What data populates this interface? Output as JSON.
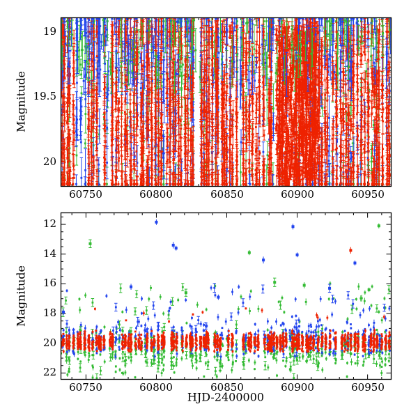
{
  "colors": {
    "red": "#ee2200",
    "green": "#33bb33",
    "blue": "#2244ee",
    "axis": "#000000",
    "background": "#ffffff"
  },
  "text": {
    "top_ylabel": "Magnitude",
    "bottom_ylabel": "Magnitude",
    "xlabel": "HJD-2400000",
    "xticks": [
      "60750",
      "60800",
      "60850",
      "60900",
      "60950"
    ],
    "top_yticks": [
      "19",
      "19.5",
      "20"
    ],
    "bottom_yticks": [
      "12",
      "14",
      "16",
      "18",
      "20",
      "22"
    ]
  },
  "chart_data": [
    {
      "type": "scatter",
      "panel": "top",
      "title": "",
      "xlabel": "",
      "ylabel": "Magnitude",
      "xlim": [
        60732,
        60967
      ],
      "ylim": [
        18.89,
        20.19
      ],
      "y_axis_inverted": true,
      "xticks": [
        60750,
        60800,
        60850,
        60900,
        60950
      ],
      "x_minor_step": 10,
      "yticks": [
        19,
        19.5,
        20
      ],
      "y_minor_step": 0.1,
      "grid": false,
      "legend": "none",
      "night_step": [
        1.2,
        3.2
      ],
      "night_skip_fraction": 0.08,
      "series": [
        {
          "name": "green-band",
          "color": "#33bb33",
          "mode": "band",
          "per_night": [
            2,
            7
          ],
          "mag_mean": 19.4,
          "mag_sigma": 0.6,
          "mag_clip": [
            18.92,
            20.17
          ],
          "err_mag": [
            0.03,
            0.2
          ]
        },
        {
          "name": "blue-band",
          "color": "#2244ee",
          "mode": "band",
          "per_night": [
            4,
            11
          ],
          "mag_mean": 19.45,
          "mag_sigma": 0.55,
          "mag_clip": [
            18.9,
            20.17
          ],
          "err_mag": [
            0.03,
            0.18
          ]
        },
        {
          "name": "red-band",
          "color": "#ee2200",
          "mode": "band",
          "per_night": [
            16,
            30
          ],
          "mag_mean": 19.65,
          "mag_sigma": 0.45,
          "mag_clip": [
            19.0,
            20.17
          ],
          "err_mag": [
            0.02,
            0.12
          ]
        },
        {
          "name": "red-dense-block",
          "color": "#ee2200",
          "mode": "uniform",
          "n": 700,
          "x_range": [
            60885,
            60915
          ],
          "mag_range": [
            18.95,
            20.17
          ],
          "err_mag": [
            0.02,
            0.08
          ]
        },
        {
          "name": "blue-top-fringe",
          "color": "#2244ee",
          "mode": "uniform",
          "n": 120,
          "mag_range": [
            18.9,
            19.4
          ],
          "err_mag": [
            0.05,
            0.2
          ]
        },
        {
          "name": "green-top-fringe",
          "color": "#33bb33",
          "mode": "uniform",
          "n": 90,
          "mag_range": [
            18.9,
            19.35
          ],
          "err_mag": [
            0.05,
            0.2
          ]
        }
      ]
    },
    {
      "type": "scatter",
      "panel": "bottom",
      "title": "",
      "xlabel": "HJD-2400000",
      "ylabel": "Magnitude",
      "xlim": [
        60732,
        60967
      ],
      "ylim": [
        11.2,
        22.45
      ],
      "y_axis_inverted": true,
      "xticks": [
        60750,
        60800,
        60850,
        60900,
        60950
      ],
      "x_minor_step": 10,
      "yticks": [
        12,
        14,
        16,
        18,
        20,
        22
      ],
      "y_minor_step": 0.5,
      "grid": false,
      "legend": "none",
      "night_step": [
        1.2,
        3.2
      ],
      "night_skip_fraction": 0.08,
      "series": [
        {
          "name": "green-band",
          "color": "#33bb33",
          "mode": "band",
          "per_night": [
            3,
            9
          ],
          "mag_mean": 20.5,
          "mag_sigma": 0.75,
          "mag_clip": [
            17.8,
            22.35
          ],
          "err_mag": [
            0.06,
            0.3
          ]
        },
        {
          "name": "blue-band",
          "color": "#2244ee",
          "mode": "band",
          "per_night": [
            3,
            8
          ],
          "mag_mean": 19.75,
          "mag_sigma": 0.55,
          "mag_clip": [
            16.8,
            20.9
          ],
          "err_mag": [
            0.05,
            0.25
          ]
        },
        {
          "name": "red-band",
          "color": "#ee2200",
          "mode": "band",
          "per_night": [
            12,
            26
          ],
          "mag_mean": 19.9,
          "mag_sigma": 0.28,
          "mag_clip": [
            18.6,
            20.55
          ],
          "err_mag": [
            0.03,
            0.15
          ]
        },
        {
          "name": "green-flares",
          "color": "#33bb33",
          "mode": "uniform",
          "n": 50,
          "mag_range": [
            15.9,
            18.2
          ],
          "err_mag": [
            0.1,
            0.3
          ]
        },
        {
          "name": "blue-flares",
          "color": "#2244ee",
          "mode": "uniform",
          "n": 45,
          "mag_range": [
            16.2,
            18.6
          ],
          "err_mag": [
            0.1,
            0.3
          ]
        },
        {
          "name": "red-bright-few",
          "color": "#ee2200",
          "mode": "uniform",
          "n": 12,
          "mag_range": [
            17.6,
            18.6
          ],
          "err_mag": [
            0.06,
            0.2
          ]
        }
      ],
      "notable_points": [
        [
          60734,
          17.9,
          "blue"
        ],
        [
          60753,
          13.3,
          "green"
        ],
        [
          60782,
          16.2,
          "blue"
        ],
        [
          60800,
          11.85,
          "blue"
        ],
        [
          60812,
          13.4,
          "blue"
        ],
        [
          60814,
          13.6,
          "blue"
        ],
        [
          60821,
          16.6,
          "green"
        ],
        [
          60844,
          16.9,
          "blue"
        ],
        [
          60866,
          13.9,
          "green"
        ],
        [
          60876,
          14.4,
          "blue"
        ],
        [
          60884,
          15.9,
          "green"
        ],
        [
          60897,
          12.15,
          "blue"
        ],
        [
          60900,
          14.05,
          "blue"
        ],
        [
          60905,
          16.1,
          "green"
        ],
        [
          60923,
          16.3,
          "blue"
        ],
        [
          60938,
          13.75,
          "red"
        ],
        [
          60941,
          14.6,
          "blue"
        ],
        [
          60951,
          16.4,
          "green"
        ],
        [
          60958,
          12.1,
          "green"
        ]
      ]
    }
  ]
}
